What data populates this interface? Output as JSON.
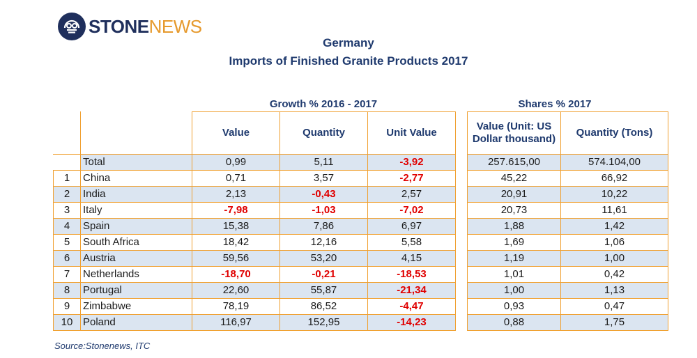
{
  "brand": {
    "name_part1": "STONE",
    "name_part2": "NEWS"
  },
  "title": "Germany",
  "subtitle": "Imports of Finished Granite Products 2017",
  "growth_header": "Growth % 2016 - 2017",
  "shares_header": "Shares % 2017",
  "columns": {
    "value": "Value",
    "quantity": "Quantity",
    "unit_value": "Unit Value",
    "share_value": "Value (Unit: US Dollar thousand)",
    "share_quantity": "Quantity (Tons)"
  },
  "total": {
    "label": "Total",
    "value": "0,99",
    "quantity": "5,11",
    "unit_value": "-3,92",
    "share_value": "257.615,00",
    "share_quantity": "574.104,00"
  },
  "rows": [
    {
      "rank": "1",
      "country": "China",
      "value": "0,71",
      "quantity": "3,57",
      "unit_value": "-2,77",
      "share_value": "45,22",
      "share_quantity": "66,92"
    },
    {
      "rank": "2",
      "country": "India",
      "value": "2,13",
      "quantity": "-0,43",
      "unit_value": "2,57",
      "share_value": "20,91",
      "share_quantity": "10,22"
    },
    {
      "rank": "3",
      "country": "Italy",
      "value": "-7,98",
      "quantity": "-1,03",
      "unit_value": "-7,02",
      "share_value": "20,73",
      "share_quantity": "11,61"
    },
    {
      "rank": "4",
      "country": "Spain",
      "value": "15,38",
      "quantity": "7,86",
      "unit_value": "6,97",
      "share_value": "1,88",
      "share_quantity": "1,42"
    },
    {
      "rank": "5",
      "country": "South Africa",
      "value": "18,42",
      "quantity": "12,16",
      "unit_value": "5,58",
      "share_value": "1,69",
      "share_quantity": "1,06"
    },
    {
      "rank": "6",
      "country": "Austria",
      "value": "59,56",
      "quantity": "53,20",
      "unit_value": "4,15",
      "share_value": "1,19",
      "share_quantity": "1,00"
    },
    {
      "rank": "7",
      "country": "Netherlands",
      "value": "-18,70",
      "quantity": "-0,21",
      "unit_value": "-18,53",
      "share_value": "1,01",
      "share_quantity": "0,42"
    },
    {
      "rank": "8",
      "country": "Portugal",
      "value": "22,60",
      "quantity": "55,87",
      "unit_value": "-21,34",
      "share_value": "1,00",
      "share_quantity": "1,13"
    },
    {
      "rank": "9",
      "country": "Zimbabwe",
      "value": "78,19",
      "quantity": "86,52",
      "unit_value": "-4,47",
      "share_value": "0,93",
      "share_quantity": "0,47"
    },
    {
      "rank": "10",
      "country": "Poland",
      "value": "116,97",
      "quantity": "152,95",
      "unit_value": "-14,23",
      "share_value": "0,88",
      "share_quantity": "1,75"
    }
  ],
  "source": "Source:Stonenews, ITC",
  "colors": {
    "title": "#1f3a6e",
    "border": "#f0a030",
    "shade": "#dbe5f1",
    "negative": "#e00000",
    "logo_dark": "#1f2f5c",
    "logo_accent": "#e69a2e"
  }
}
